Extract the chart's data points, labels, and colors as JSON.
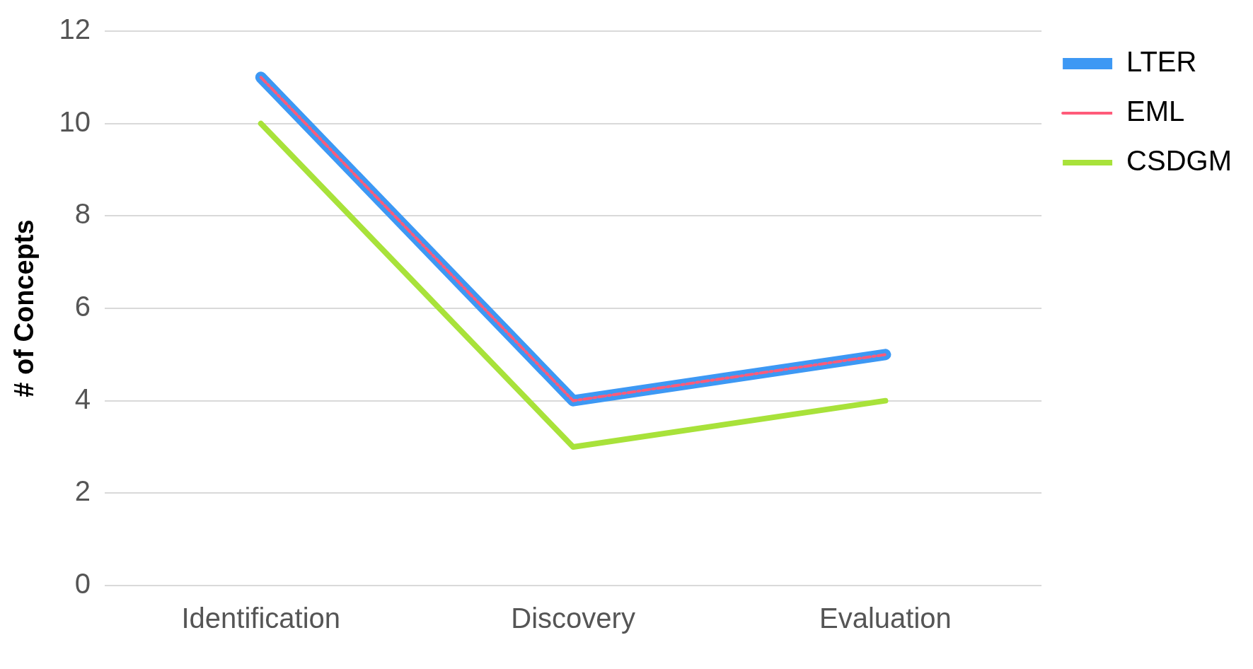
{
  "chart_data": {
    "type": "line",
    "ylabel": "# of Concepts",
    "categories": [
      "Identification",
      "Discovery",
      "Evaluation"
    ],
    "series": [
      {
        "name": "LTER",
        "color": "#3d98f4",
        "values": [
          11,
          4,
          5
        ],
        "line_style": "solid"
      },
      {
        "name": "EML",
        "color": "#ff5b7a",
        "values": [
          11,
          4,
          5
        ],
        "line_style": "dashed"
      },
      {
        "name": "CSDGM",
        "color": "#a8e23a",
        "values": [
          10,
          3,
          4
        ],
        "line_style": "solid"
      }
    ],
    "ylim": [
      0,
      12
    ],
    "yticks": [
      0,
      2,
      4,
      6,
      8,
      10,
      12
    ],
    "grid": "y",
    "legend": "top right",
    "marker": "none"
  }
}
